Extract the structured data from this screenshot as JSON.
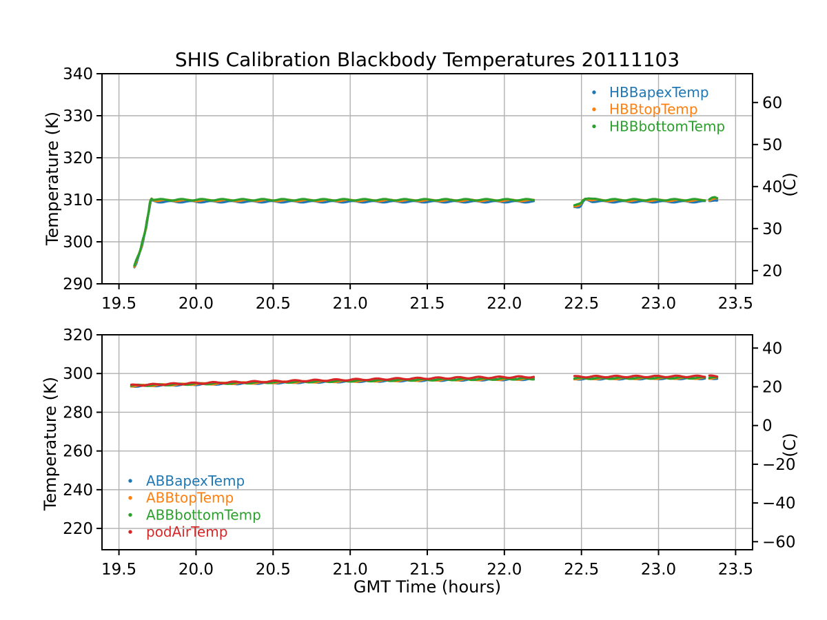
{
  "figure_title": "SHIS Calibration Blackbody Temperatures 20111103",
  "colors": {
    "blue": "#1f77b4",
    "orange": "#ff7f0e",
    "green": "#2ca02c",
    "red": "#d62728",
    "grid": "#b0b0b0",
    "spine": "#000000"
  },
  "chart_data": [
    {
      "type": "scatter",
      "title": "SHIS Calibration Blackbody Temperatures 20111103",
      "xlabel": "",
      "ylabel": "Temperature (K)",
      "ylabel_right": "(C)",
      "xlim": [
        19.39,
        23.61
      ],
      "ylim": [
        290,
        340
      ],
      "xticks": [
        19.5,
        20.0,
        20.5,
        21.0,
        21.5,
        22.0,
        22.5,
        23.0,
        23.5
      ],
      "yticks": [
        290,
        300,
        310,
        320,
        330,
        340
      ],
      "yticks_right_celsius": [
        20,
        30,
        40,
        50,
        60
      ],
      "right_axis_offset_k": 273.15,
      "grid": true,
      "legend_loc": "upper right",
      "series": [
        {
          "name": "HBBapexTemp",
          "color": "#1f77b4",
          "points": [
            [
              19.6,
              293.95
            ],
            [
              19.615,
              295.25
            ],
            [
              19.63,
              296.75
            ],
            [
              19.645,
              298.55
            ],
            [
              19.66,
              300.65
            ],
            [
              19.675,
              303.15
            ],
            [
              19.688,
              305.85
            ],
            [
              19.698,
              308.15
            ],
            [
              19.705,
              309.45
            ],
            [
              19.712,
              309.9
            ],
            [
              19.72,
              309.7
            ],
            [
              19.75,
              309.55
            ],
            [
              20.3,
              309.55
            ],
            [
              21.0,
              309.55
            ],
            [
              21.8,
              309.55
            ],
            [
              22.19,
              309.55
            ],
            null,
            [
              22.455,
              308.3
            ],
            [
              22.47,
              308.35
            ],
            [
              22.485,
              308.4
            ],
            [
              22.497,
              308.65
            ],
            [
              22.51,
              309.45
            ],
            [
              22.525,
              309.95
            ],
            [
              22.545,
              309.9
            ],
            [
              22.57,
              309.65
            ],
            [
              22.65,
              309.55
            ],
            [
              23.0,
              309.55
            ],
            [
              23.3,
              309.55
            ],
            null,
            [
              23.33,
              309.7
            ],
            [
              23.35,
              309.95
            ],
            [
              23.365,
              310.0
            ],
            [
              23.38,
              309.85
            ]
          ]
        },
        {
          "name": "HBBtopTemp",
          "color": "#ff7f0e",
          "points": [
            [
              19.6,
              294.25
            ],
            [
              19.615,
              295.55
            ],
            [
              19.63,
              297.05
            ],
            [
              19.645,
              298.85
            ],
            [
              19.66,
              300.95
            ],
            [
              19.675,
              303.45
            ],
            [
              19.688,
              306.15
            ],
            [
              19.698,
              308.45
            ],
            [
              19.705,
              309.75
            ],
            [
              19.712,
              310.2
            ],
            [
              19.72,
              310.0
            ],
            [
              19.75,
              309.85
            ],
            [
              20.3,
              309.85
            ],
            [
              21.0,
              309.85
            ],
            [
              21.8,
              309.85
            ],
            [
              22.19,
              309.85
            ],
            null,
            [
              22.455,
              308.6
            ],
            [
              22.47,
              308.65
            ],
            [
              22.485,
              308.7
            ],
            [
              22.497,
              308.95
            ],
            [
              22.51,
              309.75
            ],
            [
              22.525,
              310.25
            ],
            [
              22.545,
              310.2
            ],
            [
              22.57,
              309.95
            ],
            [
              22.65,
              309.85
            ],
            [
              23.0,
              309.85
            ],
            [
              23.3,
              309.85
            ],
            null,
            [
              23.33,
              310.0
            ],
            [
              23.35,
              310.25
            ],
            [
              23.365,
              310.3
            ],
            [
              23.38,
              310.15
            ]
          ]
        },
        {
          "name": "HBBbottomTemp",
          "color": "#2ca02c",
          "points": [
            [
              19.6,
              294.4
            ],
            [
              19.615,
              295.7
            ],
            [
              19.63,
              297.2
            ],
            [
              19.645,
              299.0
            ],
            [
              19.66,
              301.1
            ],
            [
              19.675,
              303.6
            ],
            [
              19.688,
              306.3
            ],
            [
              19.698,
              308.6
            ],
            [
              19.705,
              309.9
            ],
            [
              19.712,
              310.35
            ],
            [
              19.72,
              310.15
            ],
            [
              19.75,
              310.0
            ],
            [
              20.3,
              310.0
            ],
            [
              21.0,
              310.0
            ],
            [
              21.8,
              310.0
            ],
            [
              22.19,
              310.0
            ],
            null,
            [
              22.455,
              308.75
            ],
            [
              22.47,
              308.8
            ],
            [
              22.485,
              308.85
            ],
            [
              22.497,
              309.1
            ],
            [
              22.51,
              309.9
            ],
            [
              22.525,
              310.4
            ],
            [
              22.545,
              310.35
            ],
            [
              22.57,
              310.1
            ],
            [
              22.65,
              310.0
            ],
            [
              23.0,
              310.0
            ],
            [
              23.3,
              310.0
            ],
            null,
            [
              23.33,
              310.15
            ],
            [
              23.35,
              310.4
            ],
            [
              23.365,
              310.45
            ],
            [
              23.38,
              310.3
            ]
          ]
        }
      ]
    },
    {
      "type": "scatter",
      "title": "",
      "xlabel": "GMT Time (hours)",
      "ylabel": "Temperature (K)",
      "ylabel_right": "(C)",
      "xlim": [
        19.39,
        23.61
      ],
      "ylim": [
        209,
        320
      ],
      "xticks": [
        19.5,
        20.0,
        20.5,
        21.0,
        21.5,
        22.0,
        22.5,
        23.0,
        23.5
      ],
      "yticks": [
        220,
        240,
        260,
        280,
        300,
        320
      ],
      "yticks_right_celsius": [
        -60,
        -40,
        -20,
        0,
        20,
        40
      ],
      "right_axis_offset_k": 273.15,
      "grid": true,
      "legend_loc": "lower left",
      "series": [
        {
          "name": "ABBapexTemp",
          "color": "#1f77b4",
          "points": [
            [
              19.58,
              293.5
            ],
            [
              19.8,
              294.0
            ],
            [
              20.0,
              294.45
            ],
            [
              20.25,
              294.85
            ],
            [
              20.5,
              295.25
            ],
            [
              20.75,
              295.6
            ],
            [
              21.0,
              295.95
            ],
            [
              21.25,
              296.25
            ],
            [
              21.5,
              296.55
            ],
            [
              21.75,
              296.75
            ],
            [
              22.0,
              296.95
            ],
            [
              22.19,
              297.1
            ],
            null,
            [
              22.455,
              297.25
            ],
            [
              22.7,
              297.35
            ],
            [
              23.0,
              297.45
            ],
            [
              23.3,
              297.5
            ],
            null,
            [
              23.33,
              297.55
            ],
            [
              23.38,
              297.55
            ]
          ]
        },
        {
          "name": "ABBtopTemp",
          "color": "#ff7f0e",
          "points": [
            [
              19.58,
              293.65
            ],
            [
              19.8,
              294.15
            ],
            [
              20.0,
              294.6
            ],
            [
              20.25,
              295.0
            ],
            [
              20.5,
              295.4
            ],
            [
              20.75,
              295.75
            ],
            [
              21.0,
              296.1
            ],
            [
              21.25,
              296.4
            ],
            [
              21.5,
              296.7
            ],
            [
              21.75,
              296.9
            ],
            [
              22.0,
              297.1
            ],
            [
              22.19,
              297.25
            ],
            null,
            [
              22.455,
              297.4
            ],
            [
              22.7,
              297.5
            ],
            [
              23.0,
              297.6
            ],
            [
              23.3,
              297.65
            ],
            null,
            [
              23.33,
              297.7
            ],
            [
              23.38,
              297.7
            ]
          ]
        },
        {
          "name": "ABBbottomTemp",
          "color": "#2ca02c",
          "points": [
            [
              19.58,
              293.75
            ],
            [
              19.8,
              294.25
            ],
            [
              20.0,
              294.7
            ],
            [
              20.25,
              295.1
            ],
            [
              20.5,
              295.5
            ],
            [
              20.75,
              295.85
            ],
            [
              21.0,
              296.2
            ],
            [
              21.25,
              296.5
            ],
            [
              21.5,
              296.8
            ],
            [
              21.75,
              297.0
            ],
            [
              22.0,
              297.2
            ],
            [
              22.19,
              297.35
            ],
            null,
            [
              22.455,
              297.5
            ],
            [
              22.7,
              297.6
            ],
            [
              23.0,
              297.7
            ],
            [
              23.3,
              297.75
            ],
            null,
            [
              23.33,
              297.8
            ],
            [
              23.38,
              297.8
            ]
          ]
        },
        {
          "name": "podAirTemp",
          "color": "#d62728",
          "points": [
            [
              19.58,
              293.9
            ],
            [
              19.8,
              294.5
            ],
            [
              20.0,
              295.0
            ],
            [
              20.25,
              295.5
            ],
            [
              20.5,
              295.95
            ],
            [
              20.75,
              296.4
            ],
            [
              21.0,
              296.8
            ],
            [
              21.25,
              297.2
            ],
            [
              21.5,
              297.55
            ],
            [
              21.75,
              297.85
            ],
            [
              22.0,
              298.1
            ],
            [
              22.19,
              298.3
            ],
            null,
            [
              22.455,
              298.35
            ],
            [
              22.7,
              298.45
            ],
            [
              23.0,
              298.5
            ],
            [
              23.3,
              298.55
            ],
            null,
            [
              23.33,
              298.6
            ],
            [
              23.38,
              298.6
            ]
          ]
        }
      ]
    }
  ]
}
